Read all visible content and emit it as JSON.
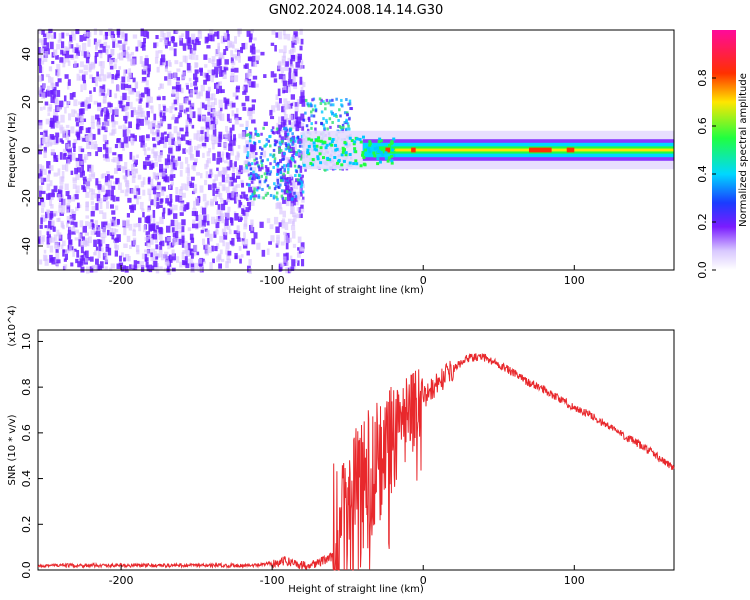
{
  "title": "GN02.2024.008.14.14.G30",
  "colors": {
    "snr_line": "#e8282c",
    "scatter_dots": "#6a1cff",
    "scatter_light": "#d7c2ff",
    "axis": "#000000"
  },
  "chart_data": [
    {
      "type": "heatmap",
      "title": "GN02.2024.008.14.14.G30",
      "xlabel": "Height of straight line (km)",
      "ylabel": "Frequency (Hz)",
      "xlim": [
        -255,
        166
      ],
      "ylim": [
        -50,
        50
      ],
      "xticks": [
        -200,
        -100,
        0,
        100
      ],
      "yticks": [
        -40,
        -20,
        0,
        20,
        40
      ],
      "grid": false,
      "colorbar": {
        "label": "Normalized spectral amplitude",
        "range": [
          0,
          1
        ],
        "ticks": [
          0.0,
          0.2,
          0.4,
          0.6,
          0.8
        ],
        "colormap": "rainbow (white → violet → blue → cyan → green → yellow → red → magenta)"
      },
      "description_values": {
        "signal_band_center_hz": 0,
        "signal_band_halfwidth_hz": 3,
        "signal_visible_from_km": -80
      }
    },
    {
      "type": "line",
      "xlabel": "Height of straight line (km)",
      "ylabel": "SNR (10 * v/v)",
      "y_multiplier": "(x10^4)",
      "xlim": [
        -255,
        166
      ],
      "ylim": [
        0,
        1.05
      ],
      "xticks": [
        -200,
        -100,
        0,
        100
      ],
      "yticks": [
        0.0,
        0.2,
        0.4,
        0.6,
        0.8,
        1.0
      ],
      "grid": false,
      "series": [
        {
          "x": [
            -255,
            -200,
            -150,
            -110,
            -100,
            -90,
            -80,
            -70,
            -60,
            -55,
            -50,
            -45,
            -40,
            -35,
            -30,
            -25,
            -20,
            -15,
            -10,
            -5,
            0,
            10,
            20,
            30,
            40,
            50,
            60,
            70,
            80,
            90,
            100,
            110,
            120,
            130,
            140,
            150,
            160,
            166
          ],
          "y": [
            0.02,
            0.02,
            0.02,
            0.02,
            0.03,
            0.04,
            0.02,
            0.03,
            0.06,
            0.12,
            0.2,
            0.28,
            0.34,
            0.42,
            0.45,
            0.52,
            0.58,
            0.65,
            0.68,
            0.72,
            0.75,
            0.82,
            0.88,
            0.93,
            0.93,
            0.9,
            0.86,
            0.82,
            0.79,
            0.75,
            0.71,
            0.68,
            0.64,
            0.6,
            0.56,
            0.52,
            0.47,
            0.45
          ]
        }
      ]
    }
  ]
}
